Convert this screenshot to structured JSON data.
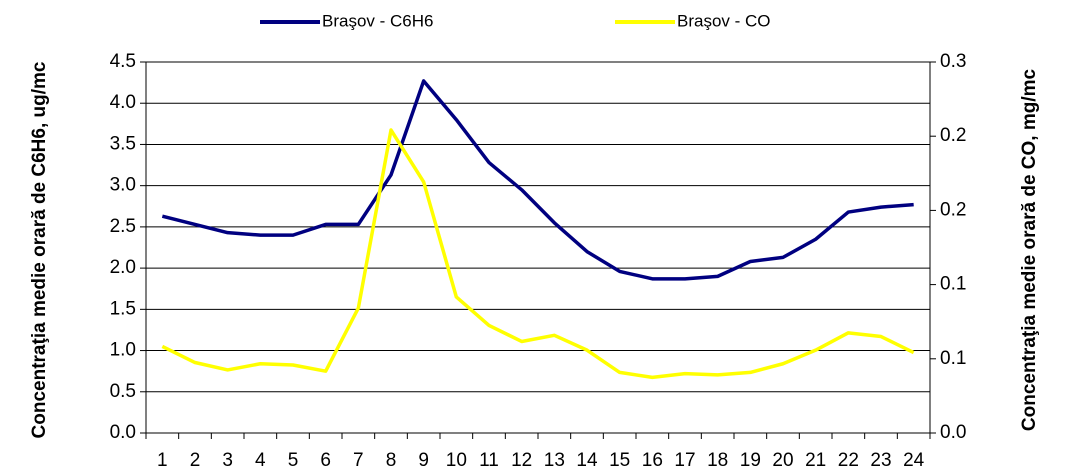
{
  "chart_data": {
    "type": "line",
    "ylabel": "Concentraţia medie orară de C6H6, ug/mc",
    "y2label": "Concentraţia medie orară de CO, mg/mc",
    "categories": [
      "1",
      "2",
      "3",
      "4",
      "5",
      "6",
      "7",
      "8",
      "9",
      "10",
      "11",
      "12",
      "13",
      "14",
      "15",
      "16",
      "17",
      "18",
      "19",
      "20",
      "21",
      "22",
      "23",
      "24"
    ],
    "series": [
      {
        "name": "Braşov - C6H6",
        "color": "#000080",
        "values": [
          2.63,
          2.53,
          2.43,
          2.4,
          2.4,
          2.53,
          2.53,
          3.13,
          4.27,
          3.8,
          3.28,
          2.95,
          2.55,
          2.2,
          1.96,
          1.87,
          1.87,
          1.9,
          2.08,
          2.13,
          2.35,
          2.68,
          2.74,
          2.77
        ]
      },
      {
        "name": "Braşov - CO",
        "color": "#ffff00",
        "axis": "y2",
        "values": [
          0.07,
          0.057,
          0.051,
          0.056,
          0.055,
          0.05,
          0.101,
          0.245,
          0.203,
          0.11,
          0.087,
          0.074,
          0.079,
          0.067,
          0.049,
          0.045,
          0.048,
          0.047,
          0.049,
          0.056,
          0.067,
          0.081,
          0.078,
          0.065
        ]
      }
    ],
    "ylim": [
      0,
      4.5
    ],
    "yticks": [
      {
        "value": 0,
        "label": "0.0"
      },
      0.5,
      {
        "value": 1,
        "label": "1.0"
      },
      1.5,
      {
        "value": 2,
        "label": "2.0"
      },
      2.5,
      {
        "value": 3,
        "label": "3.0"
      },
      3.5,
      {
        "value": 4,
        "label": "4.0"
      },
      4.5
    ],
    "y2lim": [
      0,
      0.3
    ],
    "y2ticks": [
      {
        "value": 0,
        "label": "0.0"
      },
      {
        "value": 0.06,
        "label": "0.1"
      },
      {
        "value": 0.12,
        "label": "0.1"
      },
      {
        "value": 0.18,
        "label": "0.2"
      },
      {
        "value": 0.24,
        "label": "0.2"
      },
      0.3
    ],
    "grid": true,
    "legend": "top"
  }
}
